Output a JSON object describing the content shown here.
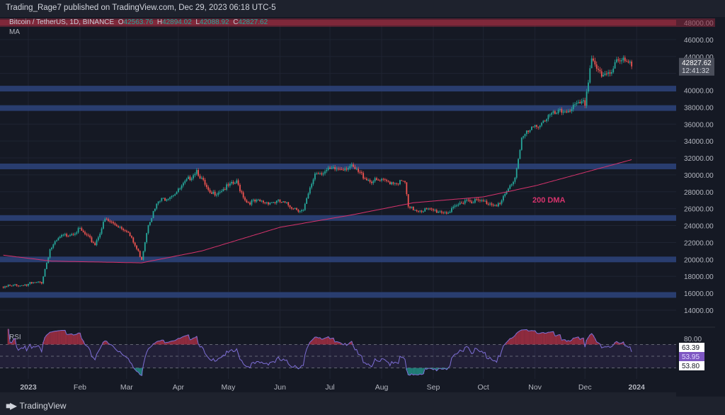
{
  "header": {
    "published": "Trading_Rage7 published on TradingView.com, Dec 29, 2023 06:18 UTC-5"
  },
  "legend": {
    "symbol": "Bitcoin / TetherUS, 1D, BINANCE",
    "open_label": "O",
    "open": "42563.76",
    "high_label": "H",
    "high": "42894.02",
    "low_label": "L",
    "low": "42088.92",
    "close_label": "C",
    "close": "42827.62",
    "indicator": "MA"
  },
  "price_tag": {
    "price": "42827.62",
    "countdown": "12:41:32"
  },
  "rsi": {
    "label": "RSI",
    "top_label": "80.00",
    "values": [
      "63.39",
      "53.95",
      "53.80"
    ],
    "levels": [
      70,
      50,
      30
    ]
  },
  "annotation": {
    "dma_label": "200 DMA"
  },
  "footer": {
    "brand": "TradingView",
    "logo": "TV"
  },
  "colors": {
    "up": "#26a69a",
    "down": "#ef5350",
    "ma": "#d6336c",
    "support_band": "#2b4178",
    "resistance_band": "#7a2a3c",
    "rsi_line": "#7e6fd6",
    "rsi_current": "#7e57c2"
  },
  "chart_data": {
    "type": "candlestick",
    "symbol": "BTCUSDT",
    "interval": "1D",
    "x_range": [
      "2022-12-17",
      "2023-12-29"
    ],
    "ylim": [
      14000,
      48000
    ],
    "y_ticks": [
      48000,
      46000,
      44000,
      42000,
      40000,
      38000,
      36000,
      34000,
      32000,
      30000,
      28000,
      26000,
      24000,
      22000,
      20000,
      18000,
      16000,
      14000
    ],
    "y_tick_labels": [
      "48000.00",
      "46000.00",
      "44000.00",
      "",
      "40000.00",
      "38000.00",
      "36000.00",
      "34000.00",
      "32000.00",
      "30000.00",
      "28000.00",
      "26000.00",
      "24000.00",
      "22000.00",
      "20000.00",
      "18000.00",
      "16000.00",
      "14000.00"
    ],
    "x_tick_labels": [
      {
        "date": "2023-01-01",
        "label": "2023"
      },
      {
        "date": "2023-02-01",
        "label": "Feb"
      },
      {
        "date": "2023-03-01",
        "label": "Mar"
      },
      {
        "date": "2023-04-01",
        "label": "Apr"
      },
      {
        "date": "2023-05-01",
        "label": "May"
      },
      {
        "date": "2023-06-01",
        "label": "Jun"
      },
      {
        "date": "2023-07-01",
        "label": "Jul"
      },
      {
        "date": "2023-08-01",
        "label": "Aug"
      },
      {
        "date": "2023-09-01",
        "label": "Sep"
      },
      {
        "date": "2023-10-01",
        "label": "Oct"
      },
      {
        "date": "2023-11-01",
        "label": "Nov"
      },
      {
        "date": "2023-12-01",
        "label": "Dec"
      },
      {
        "date": "2024-01-01",
        "label": "2024"
      }
    ],
    "price_path": [
      [
        "2022-12-17",
        16760
      ],
      [
        "2023-01-09",
        17300
      ],
      [
        "2023-01-14",
        21200
      ],
      [
        "2023-01-20",
        22600
      ],
      [
        "2023-02-01",
        23500
      ],
      [
        "2023-02-10",
        21800
      ],
      [
        "2023-02-16",
        24700
      ],
      [
        "2023-03-01",
        23500
      ],
      [
        "2023-03-10",
        20100
      ],
      [
        "2023-03-14",
        24300
      ],
      [
        "2023-03-20",
        26800
      ],
      [
        "2023-04-01",
        28100
      ],
      [
        "2023-04-12",
        30600
      ],
      [
        "2023-04-20",
        27600
      ],
      [
        "2023-05-06",
        29100
      ],
      [
        "2023-05-12",
        26800
      ],
      [
        "2023-06-01",
        26800
      ],
      [
        "2023-06-15",
        25700
      ],
      [
        "2023-06-22",
        30200
      ],
      [
        "2023-07-13",
        31000
      ],
      [
        "2023-07-25",
        29300
      ],
      [
        "2023-08-15",
        29100
      ],
      [
        "2023-08-17",
        26000
      ],
      [
        "2023-09-11",
        25600
      ],
      [
        "2023-09-20",
        27100
      ],
      [
        "2023-10-11",
        26500
      ],
      [
        "2023-10-20",
        29700
      ],
      [
        "2023-10-24",
        34400
      ],
      [
        "2023-11-09",
        36900
      ],
      [
        "2023-11-15",
        37300
      ],
      [
        "2023-12-01",
        38500
      ],
      [
        "2023-12-05",
        44000
      ],
      [
        "2023-12-11",
        41400
      ],
      [
        "2023-12-17",
        42300
      ],
      [
        "2023-12-20",
        44000
      ],
      [
        "2023-12-29",
        42827.62
      ]
    ],
    "ma_200": [
      [
        "2022-12-17",
        20500
      ],
      [
        "2023-01-15",
        19800
      ],
      [
        "2023-03-10",
        19600
      ],
      [
        "2023-04-15",
        21000
      ],
      [
        "2023-06-01",
        23800
      ],
      [
        "2023-07-15",
        25300
      ],
      [
        "2023-08-20",
        26700
      ],
      [
        "2023-10-01",
        27400
      ],
      [
        "2023-11-01",
        28700
      ],
      [
        "2023-12-01",
        30300
      ],
      [
        "2023-12-29",
        31800
      ]
    ],
    "horizontal_zones": [
      {
        "price": 48000,
        "type": "resistance"
      },
      {
        "price": 40200,
        "type": "support"
      },
      {
        "price": 37900,
        "type": "support"
      },
      {
        "price": 31000,
        "type": "support"
      },
      {
        "price": 24900,
        "type": "support"
      },
      {
        "price": 20000,
        "type": "support"
      },
      {
        "price": 15800,
        "type": "support"
      }
    ],
    "rsi_range": [
      0,
      100
    ],
    "grid": true
  }
}
